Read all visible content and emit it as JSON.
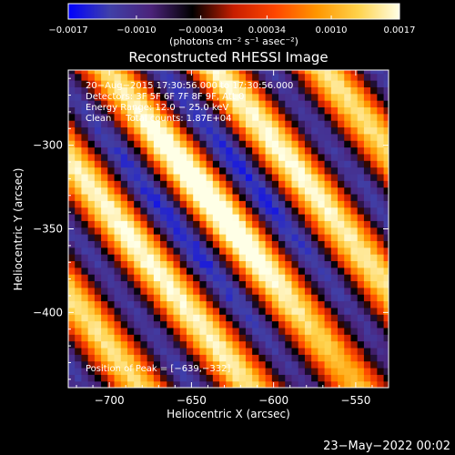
{
  "colorbar": {
    "ticks": [
      "−0.0017",
      "−0.0010",
      "−0.00034",
      "0.00034",
      "0.0010",
      "0.0017"
    ],
    "unit_label": "(photons cm⁻² s⁻¹ asec⁻²)",
    "range": [
      -0.0017,
      0.0017
    ]
  },
  "chart_data": {
    "type": "heatmap",
    "title": "Reconstructed RHESSI Image",
    "xlabel": "Heliocentric X (arcsec)",
    "ylabel": "Heliocentric Y (arcsec)",
    "xlim": [
      -725,
      -530
    ],
    "ylim": [
      -445,
      -255
    ],
    "xticks": [
      -700,
      -650,
      -600,
      -550
    ],
    "yticks": [
      -300,
      -350,
      -400
    ],
    "xtick_labels": [
      "−700",
      "−650",
      "−600",
      "−550"
    ],
    "ytick_labels": [
      "−300",
      "−350",
      "−400"
    ],
    "info_lines": [
      "20−Aug−2015 17:30:56.000 to 17:30:56.000",
      "Detectors: 3F 5F 6F 7F 8F 9F, Att 0",
      "Energy Range: 12.0 − 25.0 keV",
      "Clean     Total counts: 1.87E+04"
    ],
    "peak_label": "Position of Peak = [−639,−332]",
    "peak_position": [
      -639,
      -332
    ],
    "colormap": [
      "#0000ff",
      "#4040a8",
      "#4b237a",
      "#000000",
      "#c81e00",
      "#ff4600",
      "#ff9600",
      "#ffd24b",
      "#ffffe6"
    ]
  },
  "footer": {
    "date": "23−May−2022 00:02"
  }
}
